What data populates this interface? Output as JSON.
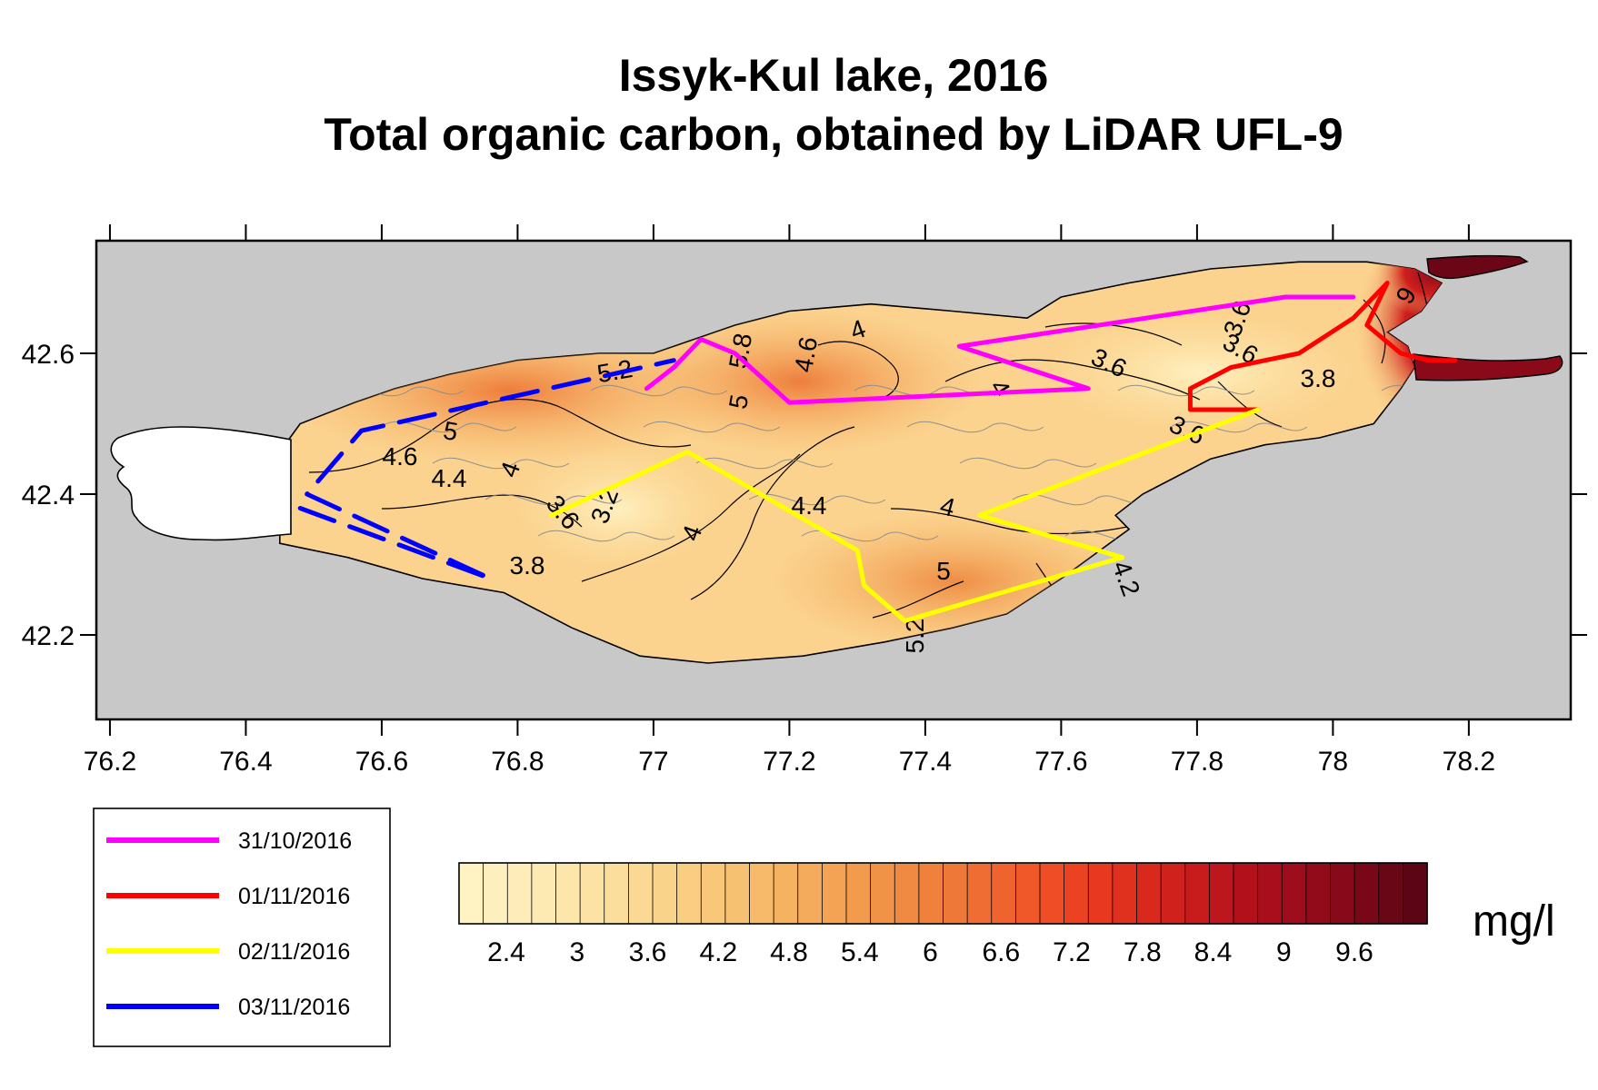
{
  "title": {
    "line1": "Issyk-Kul lake, 2016",
    "line2": "Total organic carbon, obtained by LiDAR UFL-9"
  },
  "map": {
    "lon_range": [
      76.18,
      78.35
    ],
    "lat_range": [
      42.08,
      42.76
    ],
    "x_ticks": [
      "76.2",
      "76.4",
      "76.6",
      "76.8",
      "77",
      "77.2",
      "77.4",
      "77.6",
      "77.8",
      "78",
      "78.2"
    ],
    "y_ticks": [
      "42.2",
      "42.4",
      "42.6"
    ],
    "background_color": "#c8c8c8",
    "contour_labels": [
      "5.2",
      "5.8",
      "5",
      "4.6",
      "4",
      "3.6",
      "3.6",
      "5",
      "4.6",
      "4.4",
      "4",
      "3.6",
      "3.2",
      "4",
      "4.4",
      "4",
      "4",
      "5",
      "5.2",
      "4.2",
      "3.6",
      "3.8",
      "3.8",
      "3.6",
      "9"
    ]
  },
  "legend": {
    "items": [
      {
        "date": "31/10/2016",
        "color": "#ff00ff"
      },
      {
        "date": "01/11/2016",
        "color": "#ff0000"
      },
      {
        "date": "02/11/2016",
        "color": "#ffff00"
      },
      {
        "date": "03/11/2016",
        "color": "#0000ff"
      }
    ]
  },
  "colorbar": {
    "labels": [
      "2.4",
      "3",
      "3.6",
      "4.2",
      "4.8",
      "5.4",
      "6",
      "6.6",
      "7.2",
      "7.8",
      "8.4",
      "9",
      "9.6"
    ],
    "unit": "mg/l",
    "colors": [
      "#fff3c4",
      "#fde9b0",
      "#fbdc98",
      "#f8c97c",
      "#f5b362",
      "#f2994a",
      "#ee7d3b",
      "#f15a2a",
      "#e8381f",
      "#cf1f1c",
      "#ad0f1c",
      "#8a0a1a",
      "#5c0514"
    ]
  },
  "chart_data": {
    "type": "contour_map",
    "title": "Issyk-Kul lake, 2016 / Total organic carbon, obtained by LiDAR UFL-9",
    "unit": "mg/l",
    "x_axis": {
      "label": "",
      "ticks": [
        76.2,
        76.4,
        76.6,
        76.8,
        77,
        77.2,
        77.4,
        77.6,
        77.8,
        78,
        78.2
      ]
    },
    "y_axis": {
      "label": "",
      "ticks": [
        42.2,
        42.4,
        42.6
      ]
    },
    "color_scale_ticks": [
      2.4,
      3,
      3.6,
      4.2,
      4.8,
      5.4,
      6,
      6.6,
      7.2,
      7.8,
      8.4,
      9,
      9.6
    ],
    "tracks": [
      {
        "name": "31/10/2016",
        "color": "#ff00ff",
        "lonlat": [
          [
            76.99,
            42.55
          ],
          [
            77.03,
            42.58
          ],
          [
            77.07,
            42.62
          ],
          [
            77.12,
            42.6
          ],
          [
            77.2,
            42.53
          ],
          [
            77.64,
            42.55
          ],
          [
            77.45,
            42.61
          ],
          [
            77.93,
            42.68
          ],
          [
            78.03,
            42.68
          ]
        ]
      },
      {
        "name": "01/11/2016",
        "color": "#ff0000",
        "lonlat": [
          [
            77.89,
            42.52
          ],
          [
            77.79,
            42.52
          ],
          [
            77.79,
            42.55
          ],
          [
            77.85,
            42.58
          ],
          [
            77.95,
            42.6
          ],
          [
            78.03,
            42.65
          ],
          [
            78.08,
            42.7
          ],
          [
            78.05,
            42.64
          ],
          [
            78.1,
            42.6
          ],
          [
            78.14,
            42.59
          ],
          [
            78.18,
            42.59
          ]
        ]
      },
      {
        "name": "02/11/2016",
        "color": "#ffff00",
        "lonlat": [
          [
            76.85,
            42.37
          ],
          [
            77.05,
            42.46
          ],
          [
            77.14,
            42.41
          ],
          [
            77.3,
            42.32
          ],
          [
            77.31,
            42.27
          ],
          [
            77.37,
            42.22
          ],
          [
            77.69,
            42.31
          ],
          [
            77.48,
            42.37
          ],
          [
            77.89,
            42.52
          ]
        ]
      },
      {
        "name": "03/11/2016",
        "color": "#0000ff",
        "lonlat": [
          [
            76.48,
            42.38
          ],
          [
            76.76,
            42.28
          ],
          [
            76.49,
            42.4
          ],
          [
            76.57,
            42.49
          ],
          [
            77.03,
            42.59
          ]
        ]
      }
    ]
  }
}
